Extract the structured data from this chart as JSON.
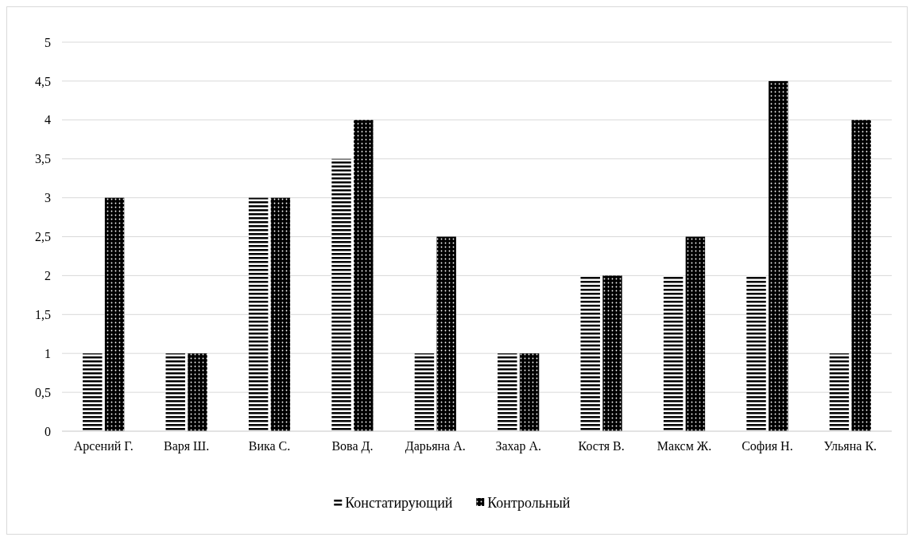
{
  "chart_data": {
    "type": "bar",
    "categories": [
      "Арсений Г.",
      "Варя Ш.",
      "Вика С.",
      "Вова Д.",
      "Дарьяна А.",
      "Захар А.",
      "Костя В.",
      "Максм Ж.",
      "София Н.",
      "Ульяна К."
    ],
    "series": [
      {
        "name": "Констатирующий",
        "color": "#000000",
        "values": [
          1,
          1,
          3,
          3.5,
          1,
          1,
          2,
          2,
          2,
          1
        ]
      },
      {
        "name": "Контрольный",
        "color": "#000000",
        "values": [
          3,
          1,
          3,
          4,
          2.5,
          1,
          2,
          2.5,
          4.5,
          4
        ]
      }
    ],
    "ylim": [
      0,
      5
    ],
    "yticks": [
      0,
      {
        "value": 0.5,
        "label": "0,5"
      },
      1,
      {
        "value": 1.5,
        "label": "1,5"
      },
      2,
      {
        "value": 2.5,
        "label": "2,5"
      },
      3,
      {
        "value": 3.5,
        "label": "3,5"
      },
      4,
      {
        "value": 4.5,
        "label": "4,5"
      },
      5
    ],
    "grid": "y",
    "legend": "bottom"
  }
}
